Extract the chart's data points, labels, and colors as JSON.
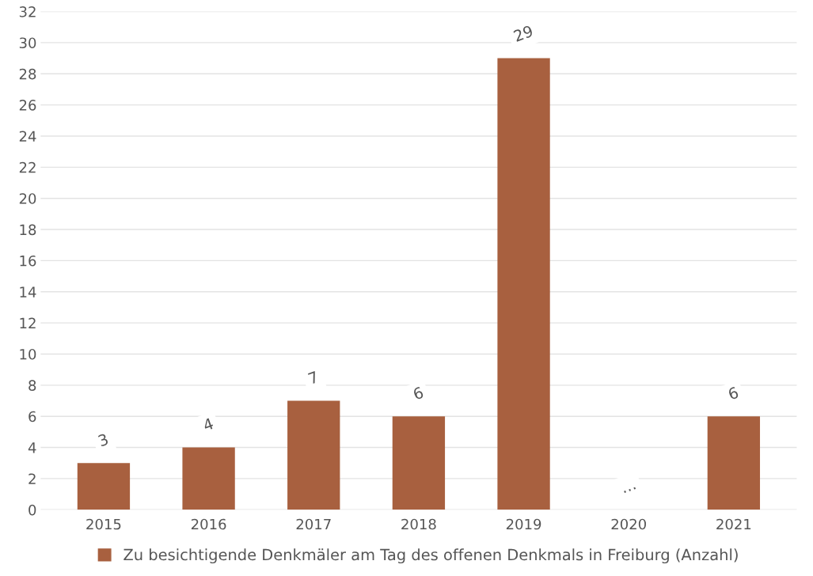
{
  "chart_data": {
    "type": "bar",
    "categories": [
      "2015",
      "2016",
      "2017",
      "2018",
      "2019",
      "2020",
      "2021"
    ],
    "series": [
      {
        "name": "Zu besichtigende Denkmäler am Tag des offenen Denkmals in Freiburg (Anzahl)",
        "color": "#a8603f",
        "values": [
          3,
          4,
          7,
          6,
          29,
          null,
          6
        ],
        "value_labels": [
          "3",
          "4",
          "7",
          "6",
          "29",
          "…",
          "6"
        ]
      }
    ],
    "ylim": [
      0,
      32
    ],
    "yticks": [
      0,
      2,
      4,
      6,
      8,
      10,
      12,
      14,
      16,
      18,
      20,
      22,
      24,
      26,
      28,
      30,
      32
    ],
    "grid": "y",
    "legend": "bottom"
  }
}
